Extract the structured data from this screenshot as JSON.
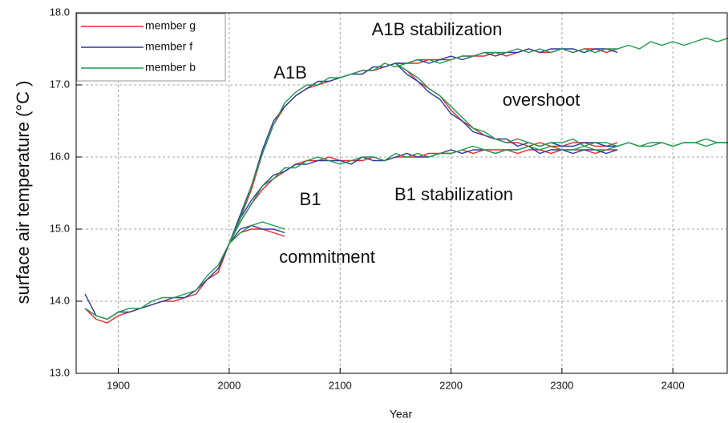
{
  "chart_data": {
    "type": "line",
    "x_label": "Year",
    "y_label": "surface air temperature (°C )",
    "annotations": [
      "A1B stabilization",
      "A1B",
      "overshoot",
      "B1",
      "B1 stabilization",
      "commitment"
    ],
    "xlim": [
      1862,
      2449
    ],
    "ylim": [
      13,
      18
    ],
    "xticks": [
      1900,
      2000,
      2100,
      2200,
      2300,
      2400
    ],
    "yticks": [
      {
        "value": 13,
        "label": "13.0"
      },
      {
        "value": 14,
        "label": "14.0"
      },
      {
        "value": 15,
        "label": "15.0"
      },
      {
        "value": 16,
        "label": "16.0"
      },
      {
        "value": 17,
        "label": "17.0"
      },
      {
        "value": 18,
        "label": "18.0"
      }
    ],
    "grid": true,
    "legend": "upper left",
    "x": [
      1870,
      1880,
      1890,
      1900,
      1910,
      1920,
      1930,
      1940,
      1950,
      1960,
      1970,
      1980,
      1990,
      2000,
      2010,
      2020,
      2030,
      2040,
      2050,
      2060,
      2070,
      2080,
      2090,
      2100,
      2110,
      2120,
      2130,
      2140,
      2150,
      2160,
      2170,
      2180,
      2190,
      2200,
      2210,
      2220,
      2230,
      2240,
      2250,
      2260,
      2270,
      2280,
      2290,
      2300,
      2310,
      2320,
      2330,
      2340,
      2350,
      2360,
      2370,
      2380,
      2390,
      2400,
      2410,
      2420,
      2430,
      2440,
      2450
    ],
    "series": [
      {
        "name": "member g",
        "color": "#e8282d",
        "lines": [
          [
            13.9,
            13.75,
            13.7,
            13.8,
            13.85,
            13.9,
            13.95,
            14.0,
            14.0,
            14.05,
            14.1,
            14.3,
            14.4,
            14.8,
            15.15,
            15.55,
            16.05,
            16.45,
            16.7,
            16.85,
            16.95,
            17.0,
            17.05,
            17.1,
            17.15,
            17.2,
            17.2,
            17.25,
            17.3,
            17.3,
            17.3,
            17.35,
            17.35,
            17.35,
            17.4,
            17.4,
            17.4,
            17.45,
            17.4,
            17.45,
            17.5,
            17.45,
            17.45,
            17.5,
            17.45,
            17.5,
            17.5,
            17.45,
            17.5,
            null,
            null,
            null,
            null,
            null,
            null,
            null,
            null,
            null,
            null
          ],
          [
            null,
            null,
            null,
            null,
            null,
            null,
            null,
            null,
            null,
            null,
            null,
            null,
            null,
            null,
            null,
            null,
            null,
            null,
            null,
            null,
            null,
            null,
            null,
            null,
            null,
            null,
            null,
            null,
            17.3,
            17.2,
            17.05,
            16.95,
            16.85,
            16.65,
            16.5,
            16.4,
            16.3,
            16.25,
            16.2,
            16.2,
            16.15,
            16.2,
            16.15,
            16.15,
            16.2,
            16.2,
            16.15,
            16.15,
            16.2,
            null,
            null,
            null,
            null,
            null,
            null,
            null,
            null,
            null,
            null
          ],
          [
            null,
            null,
            null,
            null,
            null,
            null,
            null,
            null,
            null,
            null,
            null,
            null,
            null,
            14.8,
            15.1,
            15.35,
            15.55,
            15.7,
            15.8,
            15.9,
            15.95,
            15.95,
            16.0,
            15.95,
            15.95,
            15.95,
            16.0,
            15.95,
            16.0,
            16.0,
            16.0,
            16.05,
            16.05,
            16.05,
            16.1,
            16.05,
            16.1,
            16.1,
            16.1,
            16.05,
            16.1,
            16.1,
            16.05,
            16.1,
            16.1,
            16.1,
            16.05,
            16.1,
            16.1,
            null,
            null,
            null,
            null,
            null,
            null,
            null,
            null,
            null,
            null
          ],
          [
            null,
            null,
            null,
            null,
            null,
            null,
            null,
            null,
            null,
            null,
            null,
            null,
            null,
            14.8,
            14.95,
            15.0,
            15.0,
            14.95,
            14.9,
            null,
            null,
            null,
            null,
            null,
            null,
            null,
            null,
            null,
            null,
            null,
            null,
            null,
            null,
            null,
            null,
            null,
            null,
            null,
            null,
            null,
            null,
            null,
            null,
            null,
            null,
            null,
            null,
            null,
            null,
            null,
            null,
            null,
            null,
            null,
            null,
            null,
            null,
            null,
            null
          ]
        ]
      },
      {
        "name": "member f",
        "color": "#2a3a9e",
        "lines": [
          [
            14.1,
            13.8,
            13.75,
            13.85,
            13.85,
            13.9,
            13.95,
            14.0,
            14.05,
            14.05,
            14.15,
            14.3,
            14.45,
            14.8,
            15.2,
            15.6,
            16.1,
            16.5,
            16.7,
            16.85,
            16.95,
            17.05,
            17.05,
            17.1,
            17.15,
            17.15,
            17.25,
            17.25,
            17.3,
            17.3,
            17.35,
            17.3,
            17.35,
            17.4,
            17.35,
            17.4,
            17.45,
            17.4,
            17.45,
            17.45,
            17.5,
            17.45,
            17.5,
            17.5,
            17.5,
            17.45,
            17.5,
            17.5,
            17.45,
            null,
            null,
            null,
            null,
            null,
            null,
            null,
            null,
            null,
            null
          ],
          [
            null,
            null,
            null,
            null,
            null,
            null,
            null,
            null,
            null,
            null,
            null,
            null,
            null,
            null,
            null,
            null,
            null,
            null,
            null,
            null,
            null,
            null,
            null,
            null,
            null,
            null,
            null,
            null,
            17.3,
            17.15,
            17.05,
            16.9,
            16.8,
            16.6,
            16.5,
            16.35,
            16.3,
            16.25,
            16.25,
            16.15,
            16.2,
            16.15,
            16.2,
            16.15,
            16.15,
            16.2,
            16.2,
            16.15,
            16.15,
            null,
            null,
            null,
            null,
            null,
            null,
            null,
            null,
            null,
            null
          ],
          [
            null,
            null,
            null,
            null,
            null,
            null,
            null,
            null,
            null,
            null,
            null,
            null,
            null,
            14.8,
            15.15,
            15.4,
            15.6,
            15.75,
            15.8,
            15.9,
            15.9,
            15.95,
            15.95,
            15.95,
            15.9,
            16.0,
            15.95,
            15.95,
            16.0,
            16.05,
            16.0,
            16.0,
            16.05,
            16.1,
            16.05,
            16.1,
            16.1,
            16.05,
            16.1,
            16.1,
            16.15,
            16.05,
            16.1,
            16.1,
            16.05,
            16.1,
            16.1,
            16.05,
            16.1,
            null,
            null,
            null,
            null,
            null,
            null,
            null,
            null,
            null,
            null
          ],
          [
            null,
            null,
            null,
            null,
            null,
            null,
            null,
            null,
            null,
            null,
            null,
            null,
            null,
            14.8,
            15.0,
            15.05,
            15.0,
            15.0,
            14.95,
            null,
            null,
            null,
            null,
            null,
            null,
            null,
            null,
            null,
            null,
            null,
            null,
            null,
            null,
            null,
            null,
            null,
            null,
            null,
            null,
            null,
            null,
            null,
            null,
            null,
            null,
            null,
            null,
            null,
            null,
            null,
            null,
            null,
            null,
            null,
            null,
            null,
            null,
            null,
            null
          ]
        ]
      },
      {
        "name": "member b",
        "color": "#1f9a4a",
        "lines": [
          [
            13.9,
            13.8,
            13.75,
            13.85,
            13.9,
            13.9,
            14.0,
            14.05,
            14.05,
            14.1,
            14.15,
            14.35,
            14.5,
            14.8,
            15.15,
            15.6,
            16.05,
            16.45,
            16.75,
            16.9,
            17.0,
            17.0,
            17.1,
            17.1,
            17.15,
            17.2,
            17.2,
            17.3,
            17.25,
            17.3,
            17.35,
            17.35,
            17.3,
            17.35,
            17.4,
            17.4,
            17.45,
            17.45,
            17.45,
            17.5,
            17.45,
            17.5,
            17.45,
            17.5,
            17.45,
            17.5,
            17.45,
            17.5,
            17.5,
            17.55,
            17.5,
            17.6,
            17.55,
            17.6,
            17.55,
            17.6,
            17.65,
            17.6,
            17.65
          ],
          [
            null,
            null,
            null,
            null,
            null,
            null,
            null,
            null,
            null,
            null,
            null,
            null,
            null,
            null,
            null,
            null,
            null,
            null,
            null,
            null,
            null,
            null,
            null,
            null,
            null,
            null,
            null,
            null,
            17.3,
            17.2,
            17.1,
            16.95,
            16.85,
            16.7,
            16.55,
            16.4,
            16.35,
            16.25,
            16.2,
            16.25,
            16.2,
            16.15,
            16.2,
            16.2,
            16.25,
            16.15,
            16.2,
            16.2,
            16.15,
            16.2,
            16.15,
            16.2,
            16.2,
            16.15,
            16.2,
            16.2,
            16.25,
            16.2,
            16.2
          ],
          [
            null,
            null,
            null,
            null,
            null,
            null,
            null,
            null,
            null,
            null,
            null,
            null,
            null,
            14.8,
            15.1,
            15.35,
            15.6,
            15.7,
            15.85,
            15.85,
            15.95,
            16.0,
            15.95,
            15.9,
            15.95,
            16.0,
            16.0,
            15.95,
            16.05,
            16.0,
            16.05,
            16.0,
            16.05,
            16.05,
            16.1,
            16.15,
            16.1,
            16.05,
            16.1,
            16.1,
            16.15,
            16.1,
            16.15,
            16.1,
            16.1,
            16.15,
            16.1,
            16.1,
            16.15,
            16.2,
            16.15,
            16.15,
            16.2,
            16.15,
            16.2,
            16.2,
            16.15,
            16.2,
            16.2
          ],
          [
            null,
            null,
            null,
            null,
            null,
            null,
            null,
            null,
            null,
            null,
            null,
            null,
            null,
            14.8,
            14.95,
            15.05,
            15.1,
            15.05,
            15.0,
            null,
            null,
            null,
            null,
            null,
            null,
            null,
            null,
            null,
            null,
            null,
            null,
            null,
            null,
            null,
            null,
            null,
            null,
            null,
            null,
            null,
            null,
            null,
            null,
            null,
            null,
            null,
            null,
            null,
            null,
            null,
            null,
            null,
            null,
            null,
            null,
            null,
            null,
            null,
            null
          ]
        ]
      }
    ]
  }
}
